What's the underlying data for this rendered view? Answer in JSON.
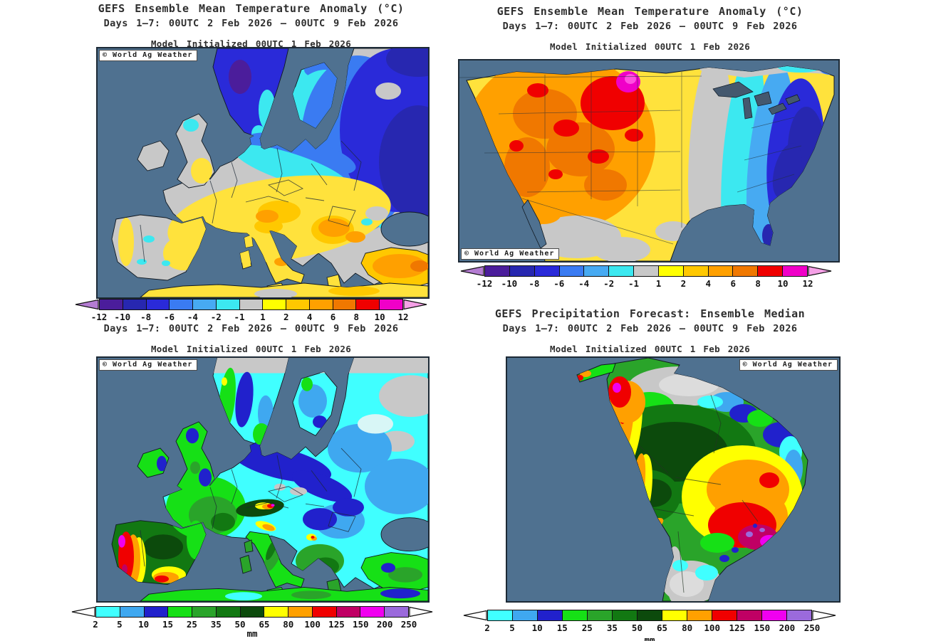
{
  "watermark": "© World Ag Weather",
  "panels": {
    "europe_temp": {
      "title": "GEFS Ensemble Mean Temperature Anomaly (°C)",
      "subtitle": "Days 1–7: 00UTC 2 Feb 2026 – 00UTC 9 Feb 2026",
      "initialized": "Model Initialized 00UTC 1 Feb 2026",
      "region": "Europe",
      "colorbar": "temperature"
    },
    "north_america_temp": {
      "title": "GEFS Ensemble Mean Temperature Anomaly (°C)",
      "subtitle": "Days 1–7: 00UTC 2 Feb 2026 – 00UTC 9 Feb 2026",
      "initialized": "Model Initialized 00UTC 1 Feb 2026",
      "region": "United States",
      "colorbar": "temperature"
    },
    "europe_precip": {
      "subtitle": "Days 1–7: 00UTC 2 Feb 2026 – 00UTC 9 Feb 2026",
      "initialized": "Model Initialized 00UTC 1 Feb 2026",
      "region": "Europe",
      "colorbar": "precipitation"
    },
    "south_america_precip": {
      "title": "GEFS Precipitation Forecast: Ensemble Median",
      "subtitle": "Days 1–7: 00UTC 2 Feb 2026 – 00UTC 9 Feb 2026",
      "initialized": "Model Initialized 00UTC 1 Feb 2026",
      "region": "South America",
      "colorbar": "precipitation"
    }
  },
  "colorbars": {
    "temperature": {
      "tick_labels": [
        "-12",
        "-10",
        "-8",
        "-6",
        "-4",
        "-2",
        "-1",
        "1",
        "2",
        "4",
        "6",
        "8",
        "10",
        "12"
      ],
      "segment_colors": [
        "#4b1d9b",
        "#2727b0",
        "#2a2ad9",
        "#3a7bf2",
        "#47aaf2",
        "#3ce8f0",
        "#c8c8c8",
        "#ffff00",
        "#ffc800",
        "#ffa000",
        "#f07800",
        "#f00000",
        "#f000c8"
      ],
      "left_arrow_color": "#b47cd2",
      "right_arrow_color": "#f5a0e6"
    },
    "precipitation": {
      "tick_labels": [
        "2",
        "5",
        "10",
        "15",
        "25",
        "35",
        "50",
        "65",
        "80",
        "100",
        "125",
        "150",
        "200",
        "250"
      ],
      "segment_colors": [
        "#40ffff",
        "#3fa8f0",
        "#2121cc",
        "#16e016",
        "#2aa42a",
        "#127812",
        "#0c4a0c",
        "#ffff00",
        "#ffa000",
        "#f00000",
        "#c00064",
        "#f000f0",
        "#9b6adc"
      ],
      "unit": "mm",
      "left_arrow_color": "#ffffff",
      "right_arrow_color": "#ffffff"
    }
  },
  "map_palette": {
    "ocean": "#4f7190",
    "lakes": "#44586e",
    "neutral_land": "#c8c8c8",
    "coastline": "#101820"
  }
}
